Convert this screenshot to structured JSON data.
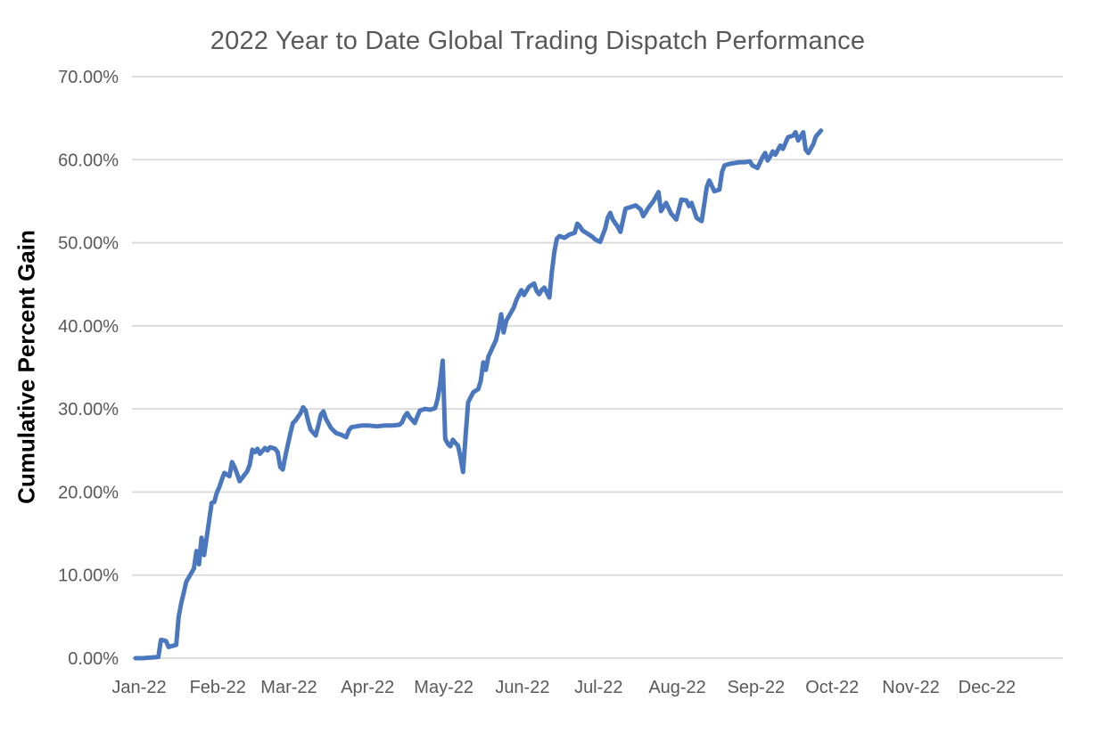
{
  "title": "2022 Year to Date Global Trading Dispatch Performance",
  "colors": {
    "line": "#4A77BD",
    "grid": "#D9D9D9",
    "title_text": "#595959",
    "tick_text": "#595959",
    "axis_title_text": "#000000",
    "background": "#FFFFFF"
  },
  "chart_data": {
    "type": "line",
    "title": "2022 Year to Date Global Trading Dispatch Performance",
    "xlabel": "",
    "ylabel": "Cumulative Percent Gain",
    "legend": "none",
    "grid": "horizontal",
    "ylim": [
      0,
      70
    ],
    "y_unit": "percent",
    "y_ticks": [
      {
        "value": 0,
        "label": "0.00%"
      },
      {
        "value": 10,
        "label": "10.00%"
      },
      {
        "value": 20,
        "label": "20.00%"
      },
      {
        "value": 30,
        "label": "30.00%"
      },
      {
        "value": 40,
        "label": "40.00%"
      },
      {
        "value": 50,
        "label": "50.00%"
      },
      {
        "value": 60,
        "label": "60.00%"
      },
      {
        "value": 70,
        "label": "70.00%"
      }
    ],
    "x_ticks": [
      {
        "label": "Jan-22",
        "doy": 1
      },
      {
        "label": "Feb-22",
        "doy": 32
      },
      {
        "label": "Mar-22",
        "doy": 60
      },
      {
        "label": "Apr-22",
        "doy": 91
      },
      {
        "label": "May-22",
        "doy": 121
      },
      {
        "label": "Jun-22",
        "doy": 152
      },
      {
        "label": "Jul-22",
        "doy": 182
      },
      {
        "label": "Aug-22",
        "doy": 213
      },
      {
        "label": "Sep-22",
        "doy": 244
      },
      {
        "label": "Oct-22",
        "doy": 274
      },
      {
        "label": "Nov-22",
        "doy": 305
      },
      {
        "label": "Dec-22",
        "doy": 335
      }
    ],
    "series": [
      {
        "name": "Cumulative Percent Gain",
        "points_format": "[day_of_year_2022, cumulative_percent_gain]",
        "points": [
          [
            1,
            0
          ],
          [
            4,
            0
          ],
          [
            6,
            0.05
          ],
          [
            8,
            0.1
          ],
          [
            10,
            0.15
          ],
          [
            11,
            2.2
          ],
          [
            12,
            2.15
          ],
          [
            13,
            2.05
          ],
          [
            14,
            1.35
          ],
          [
            17,
            1.6
          ],
          [
            18,
            5.0
          ],
          [
            19,
            6.6
          ],
          [
            20,
            7.9
          ],
          [
            21,
            9.2
          ],
          [
            24,
            10.8
          ],
          [
            25,
            12.9
          ],
          [
            26,
            11.3
          ],
          [
            27,
            14.5
          ],
          [
            28,
            12.4
          ],
          [
            31,
            18.7
          ],
          [
            32,
            18.8
          ],
          [
            33,
            19.9
          ],
          [
            34,
            20.6
          ],
          [
            35,
            21.5
          ],
          [
            36,
            22.3
          ],
          [
            38,
            21.9
          ],
          [
            39,
            23.6
          ],
          [
            40,
            23.0
          ],
          [
            41,
            22.2
          ],
          [
            42,
            21.3
          ],
          [
            45,
            22.5
          ],
          [
            46,
            23.3
          ],
          [
            47,
            25.1
          ],
          [
            48,
            24.8
          ],
          [
            49,
            25.2
          ],
          [
            50,
            24.6
          ],
          [
            52,
            25.3
          ],
          [
            53,
            25.0
          ],
          [
            54,
            25.4
          ],
          [
            56,
            25.2
          ],
          [
            57,
            24.8
          ],
          [
            58,
            23.0
          ],
          [
            59,
            22.7
          ],
          [
            60,
            24.3
          ],
          [
            61,
            25.7
          ],
          [
            62,
            27.1
          ],
          [
            63,
            28.3
          ],
          [
            64,
            28.6
          ],
          [
            66,
            29.5
          ],
          [
            67,
            30.2
          ],
          [
            68,
            29.8
          ],
          [
            69,
            28.5
          ],
          [
            70,
            27.5
          ],
          [
            72,
            26.8
          ],
          [
            73,
            28.0
          ],
          [
            74,
            29.3
          ],
          [
            75,
            29.7
          ],
          [
            76,
            28.8
          ],
          [
            78,
            27.7
          ],
          [
            80,
            27.1
          ],
          [
            82,
            26.9
          ],
          [
            84,
            26.6
          ],
          [
            85,
            27.4
          ],
          [
            86,
            27.8
          ],
          [
            88,
            27.9
          ],
          [
            90,
            28.0
          ],
          [
            93,
            28.0
          ],
          [
            96,
            27.9
          ],
          [
            99,
            28.0
          ],
          [
            102,
            28.0
          ],
          [
            105,
            28.1
          ],
          [
            106,
            28.4
          ],
          [
            107,
            29.1
          ],
          [
            108,
            29.5
          ],
          [
            109,
            29.0
          ],
          [
            111,
            28.3
          ],
          [
            112,
            29.1
          ],
          [
            113,
            29.8
          ],
          [
            115,
            30.0
          ],
          [
            117,
            29.9
          ],
          [
            119,
            30.1
          ],
          [
            120,
            31.2
          ],
          [
            121,
            33.0
          ],
          [
            122,
            35.8
          ],
          [
            123,
            26.4
          ],
          [
            124,
            25.8
          ],
          [
            125,
            25.5
          ],
          [
            126,
            26.3
          ],
          [
            127,
            25.9
          ],
          [
            128,
            25.6
          ],
          [
            129,
            24.2
          ],
          [
            130,
            22.4
          ],
          [
            131,
            26.7
          ],
          [
            132,
            30.8
          ],
          [
            133,
            31.4
          ],
          [
            134,
            32.0
          ],
          [
            136,
            32.4
          ],
          [
            137,
            33.4
          ],
          [
            138,
            35.6
          ],
          [
            139,
            34.7
          ],
          [
            140,
            36.3
          ],
          [
            143,
            38.3
          ],
          [
            144,
            39.6
          ],
          [
            145,
            41.4
          ],
          [
            146,
            39.2
          ],
          [
            147,
            40.6
          ],
          [
            150,
            42.2
          ],
          [
            151,
            43.1
          ],
          [
            152,
            43.7
          ],
          [
            153,
            44.3
          ],
          [
            154,
            43.7
          ],
          [
            156,
            44.7
          ],
          [
            157,
            44.9
          ],
          [
            158,
            45.1
          ],
          [
            159,
            44.2
          ],
          [
            160,
            43.8
          ],
          [
            161,
            44.3
          ],
          [
            162,
            44.6
          ],
          [
            164,
            43.4
          ],
          [
            165,
            46.5
          ],
          [
            166,
            49.0
          ],
          [
            167,
            50.5
          ],
          [
            168,
            50.8
          ],
          [
            170,
            50.6
          ],
          [
            172,
            51.0
          ],
          [
            174,
            51.2
          ],
          [
            175,
            52.3
          ],
          [
            176,
            52.0
          ],
          [
            177,
            51.5
          ],
          [
            179,
            51.1
          ],
          [
            181,
            50.7
          ],
          [
            182,
            50.4
          ],
          [
            184,
            50.1
          ],
          [
            186,
            51.7
          ],
          [
            187,
            53.0
          ],
          [
            188,
            53.6
          ],
          [
            189,
            52.8
          ],
          [
            191,
            51.9
          ],
          [
            192,
            51.3
          ],
          [
            194,
            54.1
          ],
          [
            196,
            54.3
          ],
          [
            198,
            54.5
          ],
          [
            200,
            54.0
          ],
          [
            201,
            53.2
          ],
          [
            203,
            54.2
          ],
          [
            205,
            55.0
          ],
          [
            207,
            56.1
          ],
          [
            208,
            53.8
          ],
          [
            210,
            54.8
          ],
          [
            212,
            53.5
          ],
          [
            214,
            52.8
          ],
          [
            216,
            55.2
          ],
          [
            218,
            55.1
          ],
          [
            219,
            54.4
          ],
          [
            220,
            54.8
          ],
          [
            222,
            53.0
          ],
          [
            224,
            52.6
          ],
          [
            225,
            54.6
          ],
          [
            226,
            56.7
          ],
          [
            227,
            57.5
          ],
          [
            229,
            56.2
          ],
          [
            231,
            56.4
          ],
          [
            232,
            58.5
          ],
          [
            233,
            59.3
          ],
          [
            235,
            59.5
          ],
          [
            237,
            59.6
          ],
          [
            239,
            59.7
          ],
          [
            241,
            59.7
          ],
          [
            243,
            59.8
          ],
          [
            244,
            59.3
          ],
          [
            246,
            59.0
          ],
          [
            248,
            60.3
          ],
          [
            249,
            60.8
          ],
          [
            250,
            59.9
          ],
          [
            251,
            60.4
          ],
          [
            252,
            61.0
          ],
          [
            253,
            60.6
          ],
          [
            255,
            61.7
          ],
          [
            256,
            61.3
          ],
          [
            258,
            62.7
          ],
          [
            260,
            62.9
          ],
          [
            261,
            63.3
          ],
          [
            262,
            62.3
          ],
          [
            264,
            63.3
          ],
          [
            265,
            61.2
          ],
          [
            266,
            60.8
          ],
          [
            268,
            61.9
          ],
          [
            269,
            62.8
          ],
          [
            271,
            63.5
          ]
        ]
      }
    ]
  }
}
